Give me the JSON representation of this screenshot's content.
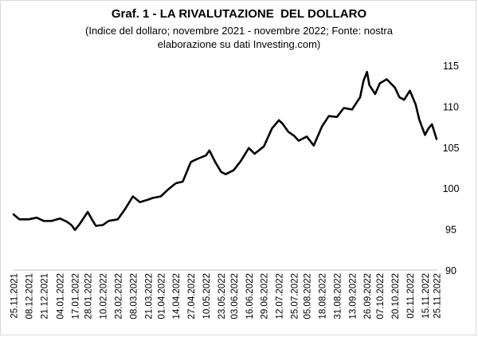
{
  "chart_data": {
    "type": "line",
    "title": "Graf. 1 - LA RIVALUTAZIONE  DEL DOLLARO",
    "subtitle_lines": [
      "(Indice del dollaro; novembre 2021 - novembre 2022; Fonte: nostra",
      "elaborazione su dati Investing.com)"
    ],
    "xlabel": "",
    "ylabel": "",
    "ylim": [
      90,
      115
    ],
    "yticks": [
      90,
      95,
      100,
      105,
      110,
      115
    ],
    "x_tick_labels": [
      "25.11.2021",
      "08.12.2021",
      "21.12.2021",
      "04.01.2022",
      "17.01.2022",
      "28.01.2022",
      "10.02.2022",
      "23.02.2022",
      "08.03.2022",
      "21.03.2022",
      "01.04.2022",
      "14.04.2022",
      "27.04.2022",
      "10.05.2022",
      "23.05.2022",
      "03.06.2022",
      "16.06.2022",
      "29.06.2022",
      "12.07.2022",
      "25.07.2022",
      "05.08.2022",
      "18.08.2022",
      "31.08.2022",
      "13.09.2022",
      "26.09.2022",
      "07.10.2022",
      "20.10.2022",
      "02.11.2022",
      "15.11.2022",
      "25.11.2022"
    ],
    "grid": false,
    "legend": "none",
    "series": [
      {
        "color": "#000000",
        "x": [
          "25.11.2021",
          "30.11.2021",
          "08.12.2021",
          "15.12.2021",
          "21.12.2021",
          "28.12.2021",
          "04.01.2022",
          "10.01.2022",
          "14.01.2022",
          "17.01.2022",
          "21.01.2022",
          "28.01.2022",
          "01.02.2022",
          "04.02.2022",
          "10.02.2022",
          "15.02.2022",
          "23.02.2022",
          "01.03.2022",
          "08.03.2022",
          "14.03.2022",
          "21.03.2022",
          "25.03.2022",
          "01.04.2022",
          "07.04.2022",
          "14.04.2022",
          "20.04.2022",
          "27.04.2022",
          "03.05.2022",
          "10.05.2022",
          "13.05.2022",
          "18.05.2022",
          "23.05.2022",
          "27.05.2022",
          "03.06.2022",
          "09.06.2022",
          "16.06.2022",
          "21.06.2022",
          "29.06.2022",
          "06.07.2022",
          "12.07.2022",
          "15.07.2022",
          "20.07.2022",
          "25.07.2022",
          "29.07.2022",
          "05.08.2022",
          "11.08.2022",
          "18.08.2022",
          "24.08.2022",
          "31.08.2022",
          "06.09.2022",
          "13.09.2022",
          "20.09.2022",
          "23.09.2022",
          "26.09.2022",
          "28.09.2022",
          "03.10.2022",
          "07.10.2022",
          "13.10.2022",
          "20.10.2022",
          "24.10.2022",
          "28.10.2022",
          "02.11.2022",
          "07.11.2022",
          "10.11.2022",
          "15.11.2022",
          "18.11.2022",
          "21.11.2022",
          "25.11.2022"
        ],
        "values": [
          96.8,
          96.2,
          96.2,
          96.4,
          96.0,
          96.0,
          96.3,
          95.9,
          95.5,
          94.9,
          95.6,
          97.1,
          96.1,
          95.4,
          95.5,
          96.0,
          96.2,
          97.4,
          99.0,
          98.3,
          98.6,
          98.8,
          99.0,
          99.8,
          100.6,
          100.8,
          103.2,
          103.6,
          104.0,
          104.6,
          103.2,
          102.0,
          101.7,
          102.2,
          103.3,
          104.9,
          104.2,
          105.1,
          107.3,
          108.3,
          107.9,
          106.9,
          106.4,
          105.8,
          106.3,
          105.2,
          107.5,
          108.8,
          108.7,
          109.8,
          109.6,
          111.1,
          113.1,
          114.2,
          112.6,
          111.5,
          112.8,
          113.3,
          112.3,
          111.1,
          110.8,
          111.9,
          110.2,
          108.4,
          106.5,
          107.3,
          107.8,
          106.0
        ]
      }
    ]
  }
}
